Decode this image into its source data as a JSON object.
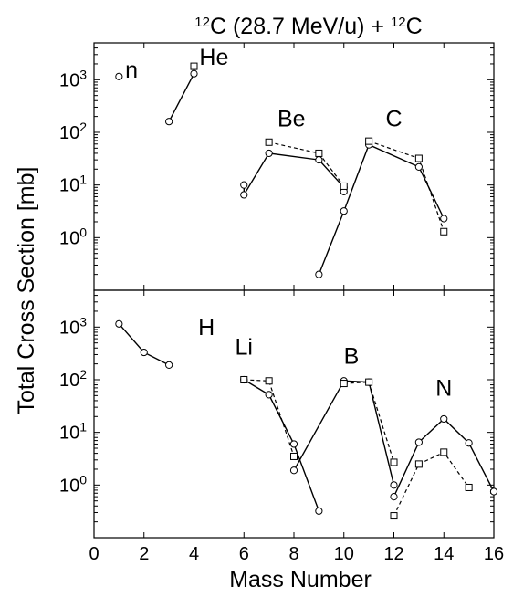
{
  "chart_data": {
    "type": "line",
    "title": "12C (28.7 MeV/u) + 12C",
    "title_parts": {
      "sup1": "12",
      "base1": "C (28.7 MeV/u) + ",
      "sup2": "12",
      "base2": "C"
    },
    "xlabel": "Mass Number",
    "ylabel": "Total Cross Section [mb]",
    "xlim": [
      0,
      16
    ],
    "x_ticks": [
      0,
      2,
      4,
      6,
      8,
      10,
      12,
      14,
      16
    ],
    "x_tick_labels": [
      "0",
      "2",
      "4",
      "6",
      "8",
      "10",
      "12",
      "14",
      "16"
    ],
    "y_scale": "log",
    "y_tick_values": [
      1,
      10,
      100,
      1000
    ],
    "y_tick_labels": [
      {
        "base": "10",
        "exp": "0"
      },
      {
        "base": "10",
        "exp": "1"
      },
      {
        "base": "10",
        "exp": "2"
      },
      {
        "base": "10",
        "exp": "3"
      }
    ],
    "panels": [
      {
        "id": "top",
        "ylim": [
          0.1,
          5000
        ],
        "labels": [
          {
            "text": "n",
            "x": 1.5,
            "y": 1100
          },
          {
            "text": "He",
            "x": 4.8,
            "y": 1900
          },
          {
            "text": "Be",
            "x": 7.9,
            "y": 130
          },
          {
            "text": "C",
            "x": 12.0,
            "y": 130
          }
        ],
        "series": [
          {
            "element": "n",
            "marker": "circle",
            "style": "solid",
            "x": [
              1
            ],
            "y": [
              1150
            ]
          },
          {
            "element": "He",
            "marker": "circle",
            "style": "solid",
            "x": [
              3,
              4
            ],
            "y": [
              160,
              1300
            ]
          },
          {
            "element": "He",
            "marker": "square",
            "style": "dashed",
            "x": [
              4
            ],
            "y": [
              1800
            ]
          },
          {
            "element": "Be",
            "marker": "circle",
            "style": "solid",
            "x": [
              6,
              6,
              7,
              9,
              10,
              10
            ],
            "y": [
              10,
              6.5,
              40,
              30,
              9,
              7.5
            ]
          },
          {
            "element": "Be",
            "marker": "square",
            "style": "dashed",
            "x": [
              7,
              9,
              10
            ],
            "y": [
              65,
              40,
              9.5
            ]
          },
          {
            "element": "C",
            "marker": "circle",
            "style": "solid",
            "x": [
              9,
              10,
              11,
              13,
              14
            ],
            "y": [
              0.2,
              3.2,
              58,
              22,
              2.3
            ]
          },
          {
            "element": "C",
            "marker": "square",
            "style": "dashed",
            "x": [
              11,
              13,
              14
            ],
            "y": [
              68,
              32,
              1.3
            ]
          }
        ]
      },
      {
        "id": "bottom",
        "ylim": [
          0.1,
          5000
        ],
        "labels": [
          {
            "text": "H",
            "x": 4.5,
            "y": 700
          },
          {
            "text": "Li",
            "x": 6.0,
            "y": 300
          },
          {
            "text": "B",
            "x": 10.3,
            "y": 200
          },
          {
            "text": "N",
            "x": 14.0,
            "y": 50
          }
        ],
        "series": [
          {
            "element": "H",
            "marker": "circle",
            "style": "solid",
            "x": [
              1,
              2,
              3
            ],
            "y": [
              1150,
              330,
              190
            ]
          },
          {
            "element": "Li",
            "marker": "circle",
            "style": "solid",
            "x": [
              6,
              7,
              8,
              9
            ],
            "y": [
              100,
              52,
              6,
              0.32
            ]
          },
          {
            "element": "Li",
            "marker": "square",
            "style": "dashed",
            "x": [
              6,
              7,
              8
            ],
            "y": [
              100,
              95,
              3.5
            ]
          },
          {
            "element": "B",
            "marker": "circle",
            "style": "solid",
            "x": [
              8,
              10,
              11,
              12
            ],
            "y": [
              1.9,
              95,
              90,
              1.0
            ]
          },
          {
            "element": "B",
            "marker": "square",
            "style": "dashed",
            "x": [
              10,
              11,
              12
            ],
            "y": [
              85,
              90,
              2.7
            ]
          },
          {
            "element": "N",
            "marker": "circle",
            "style": "solid",
            "x": [
              12,
              13,
              14,
              15,
              16
            ],
            "y": [
              0.6,
              6.5,
              18,
              6.3,
              0.75
            ]
          },
          {
            "element": "N",
            "marker": "square",
            "style": "dashed",
            "x": [
              12,
              13,
              14,
              15
            ],
            "y": [
              0.26,
              2.5,
              4.2,
              0.9
            ]
          }
        ]
      }
    ]
  }
}
